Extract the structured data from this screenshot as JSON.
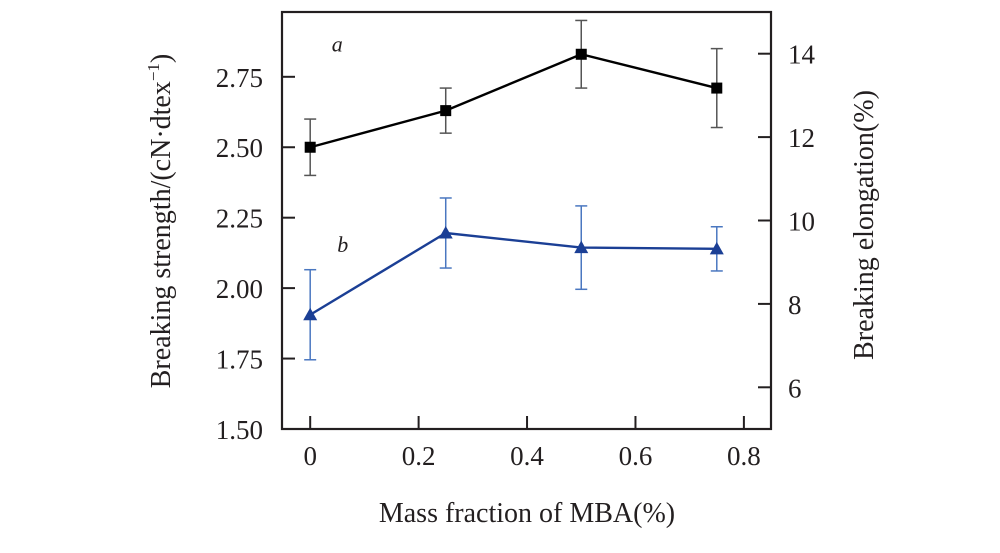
{
  "chart_data": {
    "type": "line",
    "title": "",
    "xlabel": "Mass fraction of MBA(%)",
    "ylabel_left": "Breaking strength/(cN·dtex",
    "ylabel_left_sup": "−1",
    "ylabel_left_close": ")",
    "ylabel_right": "Breaking elongation(%)",
    "x": [
      0,
      0.25,
      0.5,
      0.75
    ],
    "xlim": [
      -0.052,
      0.85
    ],
    "xticks": [
      0,
      0.2,
      0.4,
      0.6,
      0.8
    ],
    "xtick_labels": [
      "0",
      "0.2",
      "0.4",
      "0.6",
      "0.8"
    ],
    "ylim_left": [
      1.5,
      2.98
    ],
    "yticks_left": [
      1.5,
      1.75,
      2.0,
      2.25,
      2.5,
      2.75
    ],
    "ytick_labels_left": [
      "1.50",
      "1.75",
      "2.00",
      "2.25",
      "2.50",
      "2.75"
    ],
    "ylim_right": [
      5,
      15
    ],
    "yticks_right": [
      6,
      8,
      10,
      12,
      14
    ],
    "ytick_labels_right": [
      "6",
      "8",
      "10",
      "12",
      "14"
    ],
    "grid": false,
    "legend": "none",
    "series": [
      {
        "name": "a",
        "label": "a",
        "axis": "left",
        "marker": "square",
        "color": "#000000",
        "errorbar_color": "#555555",
        "values": [
          2.5,
          2.63,
          2.83,
          2.71
        ],
        "errors": [
          0.1,
          0.08,
          0.12,
          0.14
        ],
        "label_anchor": [
          0.05,
          2.84
        ]
      },
      {
        "name": "b",
        "label": "b",
        "axis": "right",
        "marker": "triangle",
        "color": "#1b3f95",
        "errorbar_color": "#4a77c0",
        "values": [
          7.74,
          9.7,
          9.35,
          9.32
        ],
        "errors": [
          1.08,
          0.84,
          1.0,
          0.53
        ],
        "label_anchor": [
          0.06,
          9.25
        ]
      }
    ]
  }
}
